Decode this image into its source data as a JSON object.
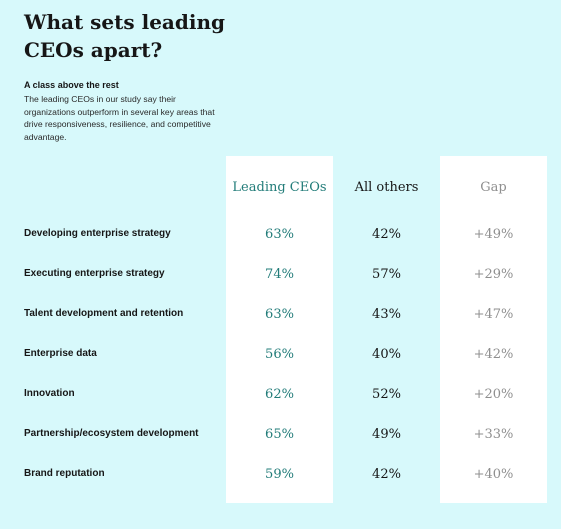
{
  "title": "What sets leading CEOs apart?",
  "subheading": "A class above the rest",
  "description": "The leading CEOs in our study say their organizations outperform in several key areas that drive responsiveness, resilience, and competitive advantage.",
  "colors": {
    "background": "#d7f9fb",
    "accent": "#227c79",
    "gap": "#8f8f8f"
  },
  "chart_data": {
    "type": "table",
    "columns": [
      "Leading CEOs",
      "All others",
      "Gap"
    ],
    "rows": [
      {
        "label": "Developing enterprise strategy",
        "values": [
          "63%",
          "42%",
          "+49%"
        ]
      },
      {
        "label": "Executing enterprise strategy",
        "values": [
          "74%",
          "57%",
          "+29%"
        ]
      },
      {
        "label": "Talent development and retention",
        "values": [
          "63%",
          "43%",
          "+47%"
        ]
      },
      {
        "label": "Enterprise data",
        "values": [
          "56%",
          "40%",
          "+42%"
        ]
      },
      {
        "label": "Innovation",
        "values": [
          "62%",
          "52%",
          "+20%"
        ]
      },
      {
        "label": "Partnership/ecosystem development",
        "values": [
          "65%",
          "49%",
          "+33%"
        ]
      },
      {
        "label": "Brand reputation",
        "values": [
          "59%",
          "42%",
          "+40%"
        ]
      }
    ]
  }
}
